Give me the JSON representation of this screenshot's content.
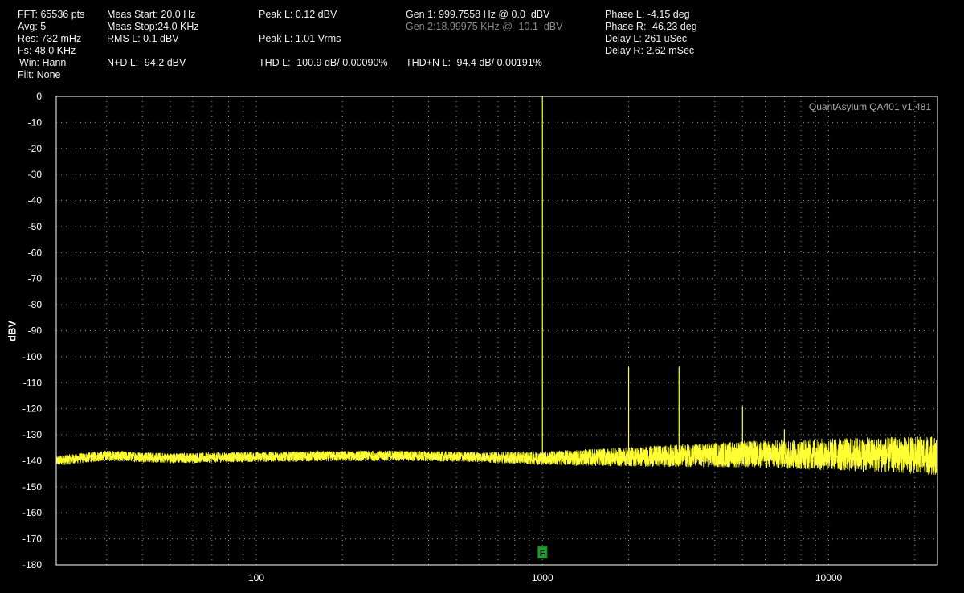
{
  "header": {
    "fft": "FFT: 65536 pts",
    "avg": "Avg: 5",
    "res": "Res: 732 mHz",
    "fs": "Fs: 48.0 KHz",
    "win": "Win: Hann",
    "filt": "Filt: None",
    "meas_start": "Meas Start: 20.0 Hz",
    "meas_stop": "Meas Stop:24.0 KHz",
    "rms_l": "RMS L: 0.1 dBV",
    "nd_l": "N+D L: -94.2 dBV",
    "peak_l_dbv": "Peak L: 0.12 dBV",
    "peak_l_vrms": "Peak L: 1.01 Vrms",
    "thd_l": "THD L: -100.9 dB/ 0.00090%",
    "gen1": "Gen 1: 999.7558 Hz @ 0.0  dBV",
    "gen2": "Gen 2:18.99975 KHz @ -10.1  dBV",
    "thdn_l": "THD+N L: -94.4 dB/ 0.00191%",
    "phase_l": "Phase L: -4.15 deg",
    "phase_r": "Phase R: -46.23 deg",
    "delay_l": "Delay L: 261 uSec",
    "delay_r": "Delay R: 2.62 mSec"
  },
  "watermark": "QuantAsylum QA401 v1.481",
  "marker_label": "F",
  "colors": {
    "background": "#000000",
    "trace": "#ffff33",
    "grid": "#9a9a9a",
    "marker": "#1f9e2e",
    "frame": "#ffffff"
  },
  "chart_data": {
    "type": "line",
    "title": "",
    "xlabel": "",
    "ylabel": "dBV",
    "x_scale": "log",
    "xlim": [
      20,
      24000
    ],
    "ylim": [
      -180,
      0
    ],
    "x_ticks": [
      100,
      1000,
      10000
    ],
    "x_tick_labels": [
      "100",
      "1000",
      "10000"
    ],
    "y_ticks": [
      0,
      -10,
      -20,
      -30,
      -40,
      -50,
      -60,
      -70,
      -80,
      -90,
      -100,
      -110,
      -120,
      -130,
      -140,
      -150,
      -160,
      -170,
      -180
    ],
    "y_tick_labels": [
      "0",
      "-10",
      "-20",
      "-30",
      "-40",
      "-50",
      "-60",
      "-70",
      "-80",
      "-90",
      "-100",
      "-110",
      "-120",
      "-130",
      "-140",
      "-150",
      "-160",
      "-170",
      "-180"
    ],
    "grid": true,
    "series": [
      {
        "noise_floor": {
          "x": [
            20,
            30,
            50,
            100,
            300,
            1000,
            2000,
            5000,
            10000,
            24000
          ],
          "y": [
            -140,
            -138,
            -139,
            -138.5,
            -138,
            -139,
            -138.5,
            -137.5,
            -137.5,
            -138
          ]
        },
        "peaks": [
          {
            "x": 999.76,
            "y": 0
          },
          {
            "x": 2000,
            "y": -104
          },
          {
            "x": 3000,
            "y": -104
          },
          {
            "x": 5000,
            "y": -119
          },
          {
            "x": 7000,
            "y": -128
          },
          {
            "x": 19000,
            "y": -131
          }
        ]
      }
    ],
    "marker": {
      "x": 1000,
      "y": -175,
      "label": "F"
    }
  }
}
